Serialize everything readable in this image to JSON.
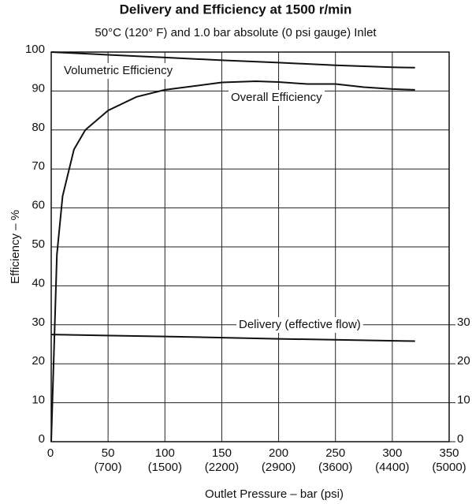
{
  "chart_data": {
    "type": "line",
    "title": "Delivery and Efficiency at 1500 r/min",
    "subtitle": "50°C (120° F) and 1.0 bar absolute (0 psi gauge) Inlet",
    "x_label": "Outlet Pressure – bar (psi)",
    "y_label": "Efficiency – %",
    "xlim": [
      0,
      350
    ],
    "xticks": [
      0,
      50,
      100,
      150,
      200,
      250,
      300,
      350
    ],
    "xtick_psi_labels": [
      null,
      "(700)",
      "(1500)",
      "(2200)",
      "(2900)",
      "(3600)",
      "(4400)",
      "(5000)"
    ],
    "ylim": [
      0,
      100
    ],
    "yticks": [
      0,
      10,
      20,
      30,
      40,
      50,
      60,
      70,
      80,
      90,
      100
    ],
    "y2lim": [
      0,
      100
    ],
    "y2ticks": [
      0,
      10,
      20,
      30
    ],
    "grid": true,
    "series": [
      {
        "name": "Volumetric Efficiency",
        "color": "#111111",
        "x": [
          0,
          50,
          100,
          150,
          200,
          250,
          300,
          320
        ],
        "values": [
          100,
          99.3,
          98.6,
          97.9,
          97.3,
          96.6,
          96.1,
          96
        ]
      },
      {
        "name": "Overall Efficiency",
        "color": "#111111",
        "x": [
          0,
          5,
          10,
          20,
          30,
          50,
          75,
          100,
          150,
          180,
          200,
          225,
          250,
          275,
          300,
          320
        ],
        "values": [
          0,
          48,
          63,
          75,
          80,
          85,
          88.5,
          90.3,
          92.2,
          92.5,
          92.3,
          91.8,
          91.8,
          91,
          90.5,
          90.3
        ]
      },
      {
        "name": "Delivery (effective flow)",
        "color": "#111111",
        "axis": "y2",
        "x": [
          0,
          100,
          200,
          320
        ],
        "values": [
          27.5,
          27,
          26.4,
          25.8
        ]
      }
    ]
  }
}
